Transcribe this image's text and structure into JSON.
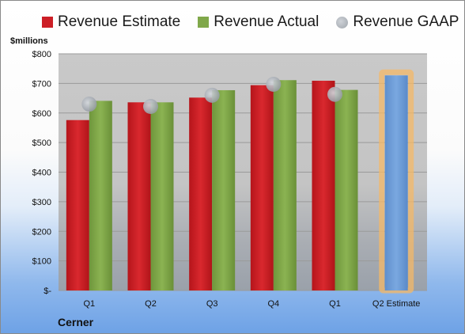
{
  "chart_data": {
    "type": "bar",
    "categories": [
      "Q1",
      "Q2",
      "Q3",
      "Q4",
      "Q1",
      "Q2 Estimate"
    ],
    "series": [
      {
        "name": "Revenue Estimate",
        "color": "#cc1f26",
        "values": [
          576,
          636,
          652,
          694,
          709,
          null
        ]
      },
      {
        "name": "Revenue Actual",
        "color": "#80a84a",
        "values": [
          641,
          636,
          677,
          711,
          678,
          null
        ]
      },
      {
        "name": "Revenue GAAP",
        "color": "#a7adb4",
        "kind": "marker",
        "values": [
          630,
          622,
          660,
          697,
          663,
          null
        ]
      }
    ],
    "forecast": {
      "category_index": 5,
      "value": 727,
      "color": "#6f9fd8",
      "highlight": "#f4b867"
    },
    "ylabel": "$millions",
    "ylim": [
      0,
      800
    ],
    "yticks": [
      {
        "value": 0,
        "label": "$-"
      },
      {
        "value": 100,
        "label": "$100"
      },
      {
        "value": 200,
        "label": "$200"
      },
      {
        "value": 300,
        "label": "$300"
      },
      {
        "value": 400,
        "label": "$400"
      },
      {
        "value": 500,
        "label": "$500"
      },
      {
        "value": 600,
        "label": "$600"
      },
      {
        "value": 700,
        "label": "$700"
      },
      {
        "value": 800,
        "label": "$800"
      }
    ],
    "grid": true,
    "legend_position": "top"
  },
  "company": "Cerner"
}
